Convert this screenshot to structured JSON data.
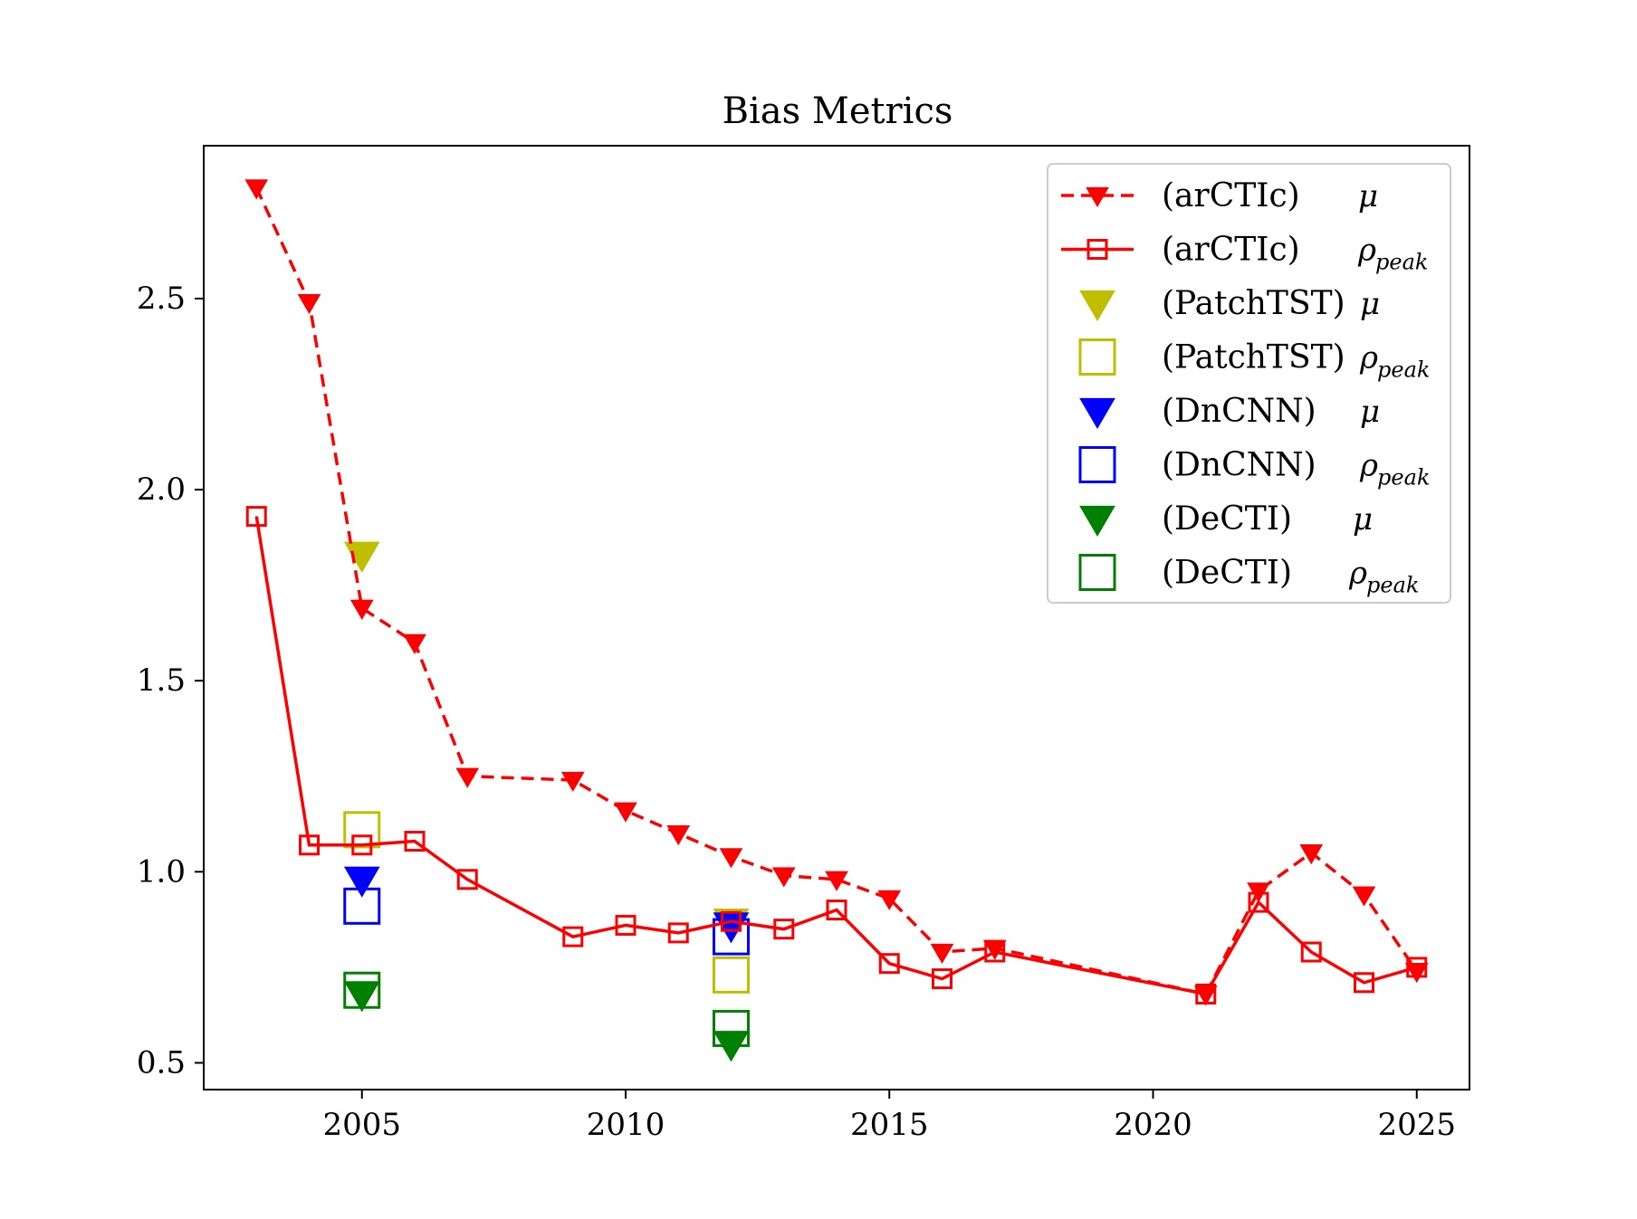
{
  "chart_data": {
    "type": "line",
    "title": "Bias Metrics",
    "xlabel": "",
    "ylabel": "",
    "xlim": [
      2002,
      2026
    ],
    "ylim": [
      0.43,
      2.9
    ],
    "xticks": [
      2005,
      2010,
      2015,
      2020,
      2025
    ],
    "yticks": [
      0.5,
      1.0,
      1.5,
      2.0,
      2.5
    ],
    "xtick_labels": [
      "2005",
      "2010",
      "2015",
      "2020",
      "2025"
    ],
    "ytick_labels": [
      "0.5",
      "1.0",
      "1.5",
      "2.0",
      "2.5"
    ],
    "grid": false,
    "legend_position": "top-right",
    "series": [
      {
        "model": "(arCTIc)",
        "symbol": "μ",
        "subscript": "",
        "color": "#ff0000",
        "marker": "triangle-down",
        "fill": true,
        "line": "dashed",
        "x": [
          2003,
          2004,
          2005,
          2006,
          2007,
          2009,
          2010,
          2011,
          2012,
          2013,
          2014,
          2015,
          2016,
          2017,
          2021,
          2022,
          2023,
          2024,
          2025
        ],
        "y": [
          2.79,
          2.49,
          1.69,
          1.6,
          1.25,
          1.24,
          1.16,
          1.1,
          1.04,
          0.99,
          0.98,
          0.93,
          0.79,
          0.8,
          0.68,
          0.95,
          1.05,
          0.94,
          0.74
        ]
      },
      {
        "model": "(arCTIc)",
        "symbol": "ρ",
        "subscript": "peak",
        "color": "#ff0000",
        "marker": "square",
        "fill": false,
        "line": "solid",
        "x": [
          2003,
          2004,
          2005,
          2006,
          2007,
          2009,
          2010,
          2011,
          2012,
          2013,
          2014,
          2015,
          2016,
          2017,
          2021,
          2022,
          2023,
          2024,
          2025
        ],
        "y": [
          1.93,
          1.07,
          1.07,
          1.08,
          0.98,
          0.83,
          0.86,
          0.84,
          0.87,
          0.85,
          0.9,
          0.76,
          0.72,
          0.79,
          0.68,
          0.92,
          0.79,
          0.71,
          0.75
        ]
      },
      {
        "model": "(PatchTST)",
        "symbol": "μ",
        "subscript": "",
        "color": "#bfbf00",
        "marker": "triangle-down",
        "fill": true,
        "line": "none",
        "x": [
          2005,
          2012
        ],
        "y": [
          1.83,
          0.87
        ]
      },
      {
        "model": "(PatchTST)",
        "symbol": "ρ",
        "subscript": "peak",
        "color": "#bfbf00",
        "marker": "square",
        "fill": false,
        "line": "none",
        "x": [
          2005,
          2012
        ],
        "y": [
          1.11,
          0.73
        ]
      },
      {
        "model": "(DnCNN)",
        "symbol": "μ",
        "subscript": "",
        "color": "#0000ff",
        "marker": "triangle-down",
        "fill": true,
        "line": "none",
        "x": [
          2005,
          2012
        ],
        "y": [
          0.98,
          0.86
        ]
      },
      {
        "model": "(DnCNN)",
        "symbol": "ρ",
        "subscript": "peak",
        "color": "#0000ff",
        "marker": "square",
        "fill": false,
        "line": "none",
        "x": [
          2005,
          2012
        ],
        "y": [
          0.91,
          0.83
        ]
      },
      {
        "model": "(DeCTI)",
        "symbol": "μ",
        "subscript": "",
        "color": "#008000",
        "marker": "triangle-down",
        "fill": true,
        "line": "none",
        "x": [
          2005,
          2012
        ],
        "y": [
          0.68,
          0.55
        ]
      },
      {
        "model": "(DeCTI)",
        "symbol": "ρ",
        "subscript": "peak",
        "color": "#008000",
        "marker": "square",
        "fill": false,
        "line": "none",
        "x": [
          2005,
          2012
        ],
        "y": [
          0.69,
          0.59
        ]
      }
    ]
  }
}
